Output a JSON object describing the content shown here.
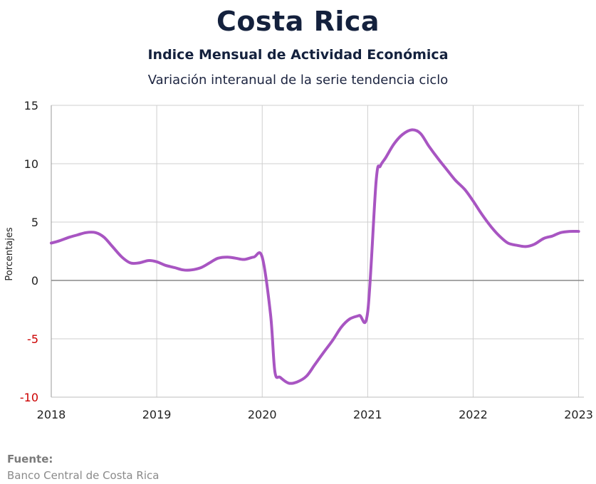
{
  "title": "Costa Rica",
  "subtitle": "Indice Mensual de  Actividad Económica",
  "subtitle2": "Variación interanual de la serie tendencia ciclo",
  "source": {
    "label": "Fuente:",
    "text": "Banco Central de Costa Rica"
  },
  "colors": {
    "line": "#a855c2",
    "negative_tick": "#cc0000",
    "grid": "#cfcfcf",
    "zero_line": "#8a8a8a"
  },
  "chart_data": {
    "type": "line",
    "title": "",
    "xlabel": "",
    "ylabel": "Porcentajes",
    "ylim": [
      -10,
      15
    ],
    "xlim": [
      2018,
      2023.05
    ],
    "yticks": [
      15,
      10,
      5,
      0,
      -5,
      -10
    ],
    "xticks": [
      2018,
      2019,
      2020,
      2021,
      2022,
      2023
    ],
    "grid": true,
    "series": [
      {
        "name": "",
        "x": [
          2018.0,
          2018.08,
          2018.17,
          2018.25,
          2018.33,
          2018.42,
          2018.5,
          2018.58,
          2018.67,
          2018.75,
          2018.83,
          2018.92,
          2019.0,
          2019.08,
          2019.17,
          2019.25,
          2019.33,
          2019.42,
          2019.5,
          2019.58,
          2019.67,
          2019.75,
          2019.83,
          2019.92,
          2020.0,
          2020.08,
          2020.12,
          2020.17,
          2020.25,
          2020.33,
          2020.42,
          2020.5,
          2020.58,
          2020.67,
          2020.75,
          2020.83,
          2020.92,
          2021.0,
          2021.08,
          2021.12,
          2021.17,
          2021.25,
          2021.33,
          2021.42,
          2021.5,
          2021.58,
          2021.67,
          2021.75,
          2021.83,
          2021.92,
          2022.0,
          2022.08,
          2022.17,
          2022.25,
          2022.33,
          2022.42,
          2022.5,
          2022.58,
          2022.67,
          2022.75,
          2022.83,
          2022.92,
          2023.0
        ],
        "y": [
          3.2,
          3.4,
          3.7,
          3.9,
          4.1,
          4.1,
          3.7,
          2.9,
          2.0,
          1.5,
          1.5,
          1.7,
          1.6,
          1.3,
          1.1,
          0.9,
          0.9,
          1.1,
          1.5,
          1.9,
          2.0,
          1.9,
          1.8,
          2.0,
          2.0,
          -3.0,
          -7.8,
          -8.3,
          -8.8,
          -8.7,
          -8.2,
          -7.2,
          -6.2,
          -5.1,
          -4.0,
          -3.3,
          -3.0,
          -2.7,
          8.5,
          9.8,
          10.5,
          11.7,
          12.5,
          12.9,
          12.6,
          11.5,
          10.4,
          9.5,
          8.6,
          7.8,
          6.8,
          5.7,
          4.6,
          3.8,
          3.2,
          3.0,
          2.9,
          3.1,
          3.6,
          3.8,
          4.1,
          4.2,
          4.2
        ]
      }
    ]
  }
}
